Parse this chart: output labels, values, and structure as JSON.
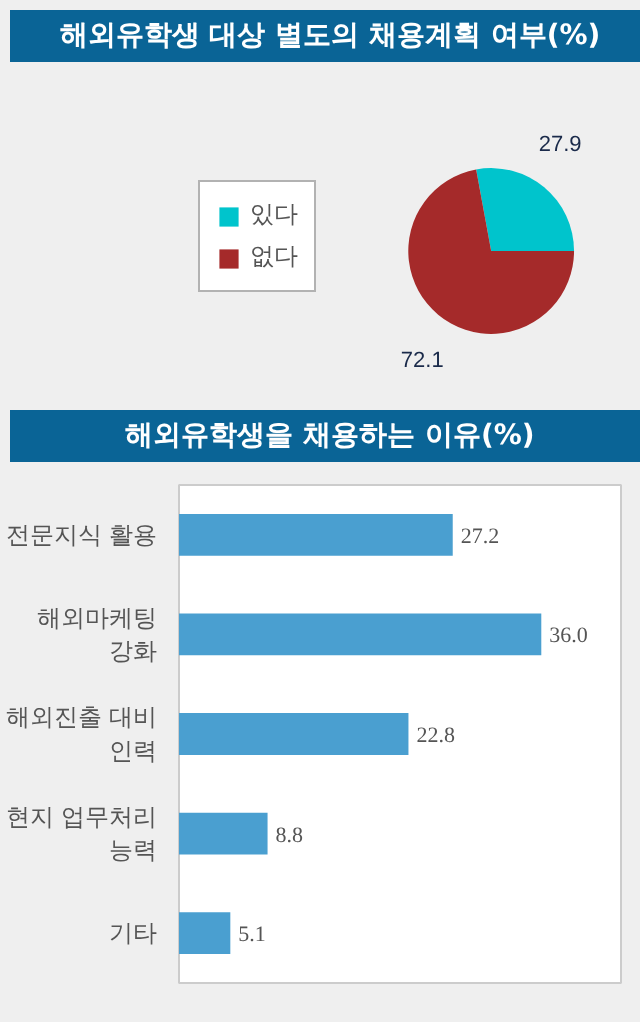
{
  "chart_data": [
    {
      "type": "pie",
      "title": "해외유학생 대상 별도의 채용계획 여부(%)",
      "categories": [
        "있다",
        "없다"
      ],
      "values": [
        27.9,
        72.1
      ],
      "colors": [
        "#00c4cc",
        "#a52a2a"
      ],
      "data_labels": true,
      "legend": "left"
    },
    {
      "type": "bar",
      "orientation": "horizontal",
      "title": "해외유학생을 채용하는 이유(%)",
      "categories": [
        "전문지식 활용",
        "해외마케팅\n강화",
        "해외진출 대비\n인력",
        "현지 업무처리\n능력",
        "기타"
      ],
      "values": [
        27.2,
        36.0,
        22.8,
        8.8,
        5.1
      ],
      "color": "#4a9fd0",
      "data_labels": true,
      "value_labels": [
        "27.2",
        "36.0",
        "22.8",
        "8.8",
        "5.1"
      ],
      "tick_labels": "y"
    }
  ]
}
